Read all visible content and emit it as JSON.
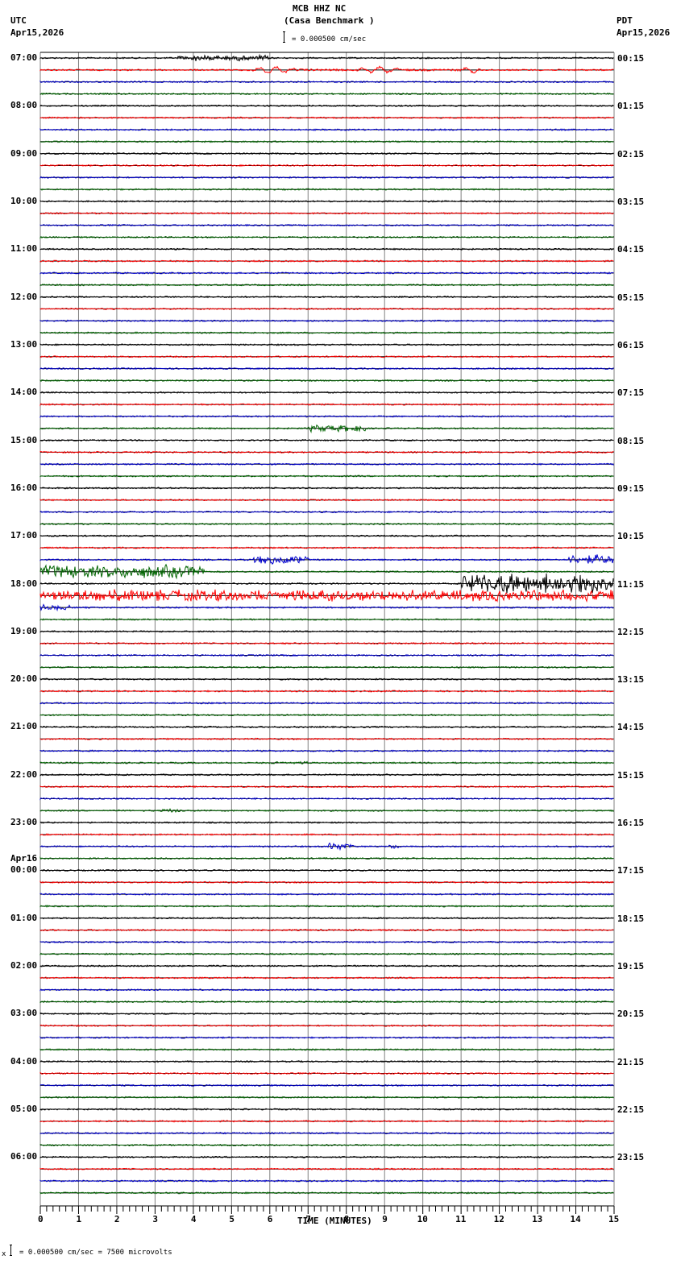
{
  "header": {
    "station": "MCB HHZ NC",
    "location": "(Casa Benchmark )",
    "scale_text": "= 0.000500 cm/sec",
    "left_tz": "UTC",
    "left_date": "Apr15,2026",
    "right_tz": "PDT",
    "right_date": "Apr15,2026"
  },
  "footer": {
    "axis_title": "TIME (MINUTES)",
    "scale_note": "= 0.000500 cm/sec =    7500 microvolts",
    "scale_prefix": "x"
  },
  "colors": {
    "trace_cycle": [
      "#000000",
      "#ff0000",
      "#0000cc",
      "#006400"
    ],
    "grid": "#808080",
    "baseline": "#000000"
  },
  "plot": {
    "x_start": 50,
    "x_end": 762,
    "y_first_trace": 72,
    "trace_spacing": 14.83,
    "trace_count": 96,
    "top_border": 65,
    "axis_y": 1497,
    "minutes": 15
  },
  "x_ticks": [
    "0",
    "1",
    "2",
    "3",
    "4",
    "5",
    "6",
    "7",
    "8",
    "9",
    "10",
    "11",
    "12",
    "13",
    "14",
    "15"
  ],
  "left_labels": [
    {
      "hour": 0,
      "text": "07:00"
    },
    {
      "hour": 1,
      "text": "08:00"
    },
    {
      "hour": 2,
      "text": "09:00"
    },
    {
      "hour": 3,
      "text": "10:00"
    },
    {
      "hour": 4,
      "text": "11:00"
    },
    {
      "hour": 5,
      "text": "12:00"
    },
    {
      "hour": 6,
      "text": "13:00"
    },
    {
      "hour": 7,
      "text": "14:00"
    },
    {
      "hour": 8,
      "text": "15:00"
    },
    {
      "hour": 9,
      "text": "16:00"
    },
    {
      "hour": 10,
      "text": "17:00"
    },
    {
      "hour": 11,
      "text": "18:00"
    },
    {
      "hour": 12,
      "text": "19:00"
    },
    {
      "hour": 13,
      "text": "20:00"
    },
    {
      "hour": 14,
      "text": "21:00"
    },
    {
      "hour": 15,
      "text": "22:00"
    },
    {
      "hour": 16,
      "text": "23:00"
    },
    {
      "hour": 17,
      "text": "00:00",
      "date": "Apr16"
    },
    {
      "hour": 18,
      "text": "01:00"
    },
    {
      "hour": 19,
      "text": "02:00"
    },
    {
      "hour": 20,
      "text": "03:00"
    },
    {
      "hour": 21,
      "text": "04:00"
    },
    {
      "hour": 22,
      "text": "05:00"
    },
    {
      "hour": 23,
      "text": "06:00"
    }
  ],
  "right_labels": [
    "00:15",
    "01:15",
    "02:15",
    "03:15",
    "04:15",
    "05:15",
    "06:15",
    "07:15",
    "08:15",
    "09:15",
    "10:15",
    "11:15",
    "12:15",
    "13:15",
    "14:15",
    "15:15",
    "16:15",
    "17:15",
    "18:15",
    "19:15",
    "20:15",
    "21:15",
    "22:15",
    "23:15"
  ],
  "events": [
    {
      "trace": 0,
      "from": 3.6,
      "to": 6.0,
      "amp": 4,
      "note": "small local event"
    },
    {
      "trace": 1,
      "from": 5.4,
      "to": 11.5,
      "amp": 5,
      "wave": true,
      "note": "teleseismic surface waves"
    },
    {
      "trace": 31,
      "from": 7.0,
      "to": 8.5,
      "amp": 5
    },
    {
      "trace": 42,
      "from": 5.5,
      "to": 7.0,
      "amp": 6
    },
    {
      "trace": 42,
      "from": 13.8,
      "to": 15.0,
      "amp": 7
    },
    {
      "trace": 43,
      "from": 0.0,
      "to": 4.3,
      "amp": 9
    },
    {
      "trace": 44,
      "from": 11.0,
      "to": 15.0,
      "amp": 14
    },
    {
      "trace": 45,
      "from": 0.0,
      "to": 15.0,
      "amp": 8
    },
    {
      "trace": 46,
      "from": 0.0,
      "to": 0.8,
      "amp": 4
    },
    {
      "trace": 59,
      "from": 6.0,
      "to": 7.0,
      "amp": 2
    },
    {
      "trace": 63,
      "from": 3.2,
      "to": 3.8,
      "amp": 3
    },
    {
      "trace": 66,
      "from": 7.5,
      "to": 8.2,
      "amp": 6
    },
    {
      "trace": 66,
      "from": 9.1,
      "to": 9.4,
      "amp": 3
    }
  ]
}
